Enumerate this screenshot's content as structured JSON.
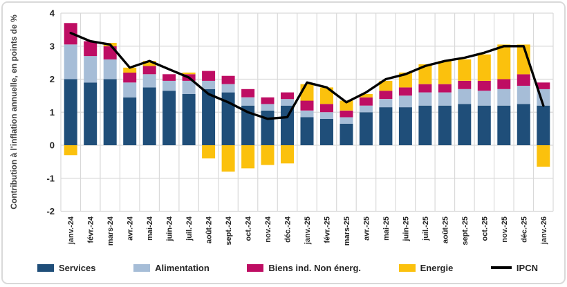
{
  "chart_data": {
    "type": "bar",
    "stacked": true,
    "title": "",
    "ylabel": "Contribution à l'inflation annuelle, en points de %",
    "xlabel": "",
    "ylim": [
      -2,
      4
    ],
    "yticks": [
      4,
      3,
      2,
      1,
      0,
      -1,
      -2
    ],
    "grid": true,
    "legend_position": "bottom",
    "categories": [
      "janv.-24",
      "févr.-24",
      "mars-24",
      "avr.-24",
      "mai-24",
      "juin-24",
      "juil.-24",
      "août-24",
      "sept.-24",
      "oct.-24",
      "nov.-24",
      "déc.-24",
      "janv.-25",
      "févr.-25",
      "mars-25",
      "avr.-25",
      "mai-25",
      "juin-25",
      "juil.-25",
      "août-25",
      "sept.-25",
      "oct.-25",
      "nov.-25",
      "déc.-25",
      "janv.-26"
    ],
    "series": [
      {
        "name": "Services",
        "color": "#1F4E79",
        "values": [
          2.0,
          1.9,
          2.0,
          1.45,
          1.75,
          1.65,
          1.55,
          1.7,
          1.6,
          1.2,
          1.05,
          1.2,
          0.85,
          0.8,
          0.65,
          1.0,
          1.15,
          1.15,
          1.2,
          1.2,
          1.25,
          1.2,
          1.2,
          1.25,
          1.2
        ]
      },
      {
        "name": "Alimentation",
        "color": "#A6BDD7",
        "values": [
          1.05,
          0.8,
          0.6,
          0.45,
          0.4,
          0.3,
          0.4,
          0.25,
          0.25,
          0.25,
          0.2,
          0.2,
          0.2,
          0.2,
          0.2,
          0.2,
          0.25,
          0.35,
          0.4,
          0.4,
          0.45,
          0.45,
          0.5,
          0.55,
          0.5
        ]
      },
      {
        "name": "Biens ind. Non énerg.",
        "color": "#BE0D63",
        "values": [
          0.65,
          0.45,
          0.4,
          0.3,
          0.25,
          0.2,
          0.2,
          0.3,
          0.25,
          0.25,
          0.2,
          0.2,
          0.3,
          0.25,
          0.2,
          0.25,
          0.25,
          0.25,
          0.25,
          0.25,
          0.25,
          0.3,
          0.3,
          0.35,
          0.2
        ]
      },
      {
        "name": "Energie",
        "color": "#FBC10D",
        "values": [
          -0.3,
          0.0,
          0.1,
          0.15,
          0.15,
          0.0,
          0.05,
          -0.4,
          -0.8,
          -0.7,
          -0.6,
          -0.55,
          0.5,
          0.5,
          0.3,
          0.1,
          0.3,
          0.45,
          0.6,
          0.7,
          0.65,
          0.8,
          1.05,
          0.9,
          -0.65
        ]
      }
    ],
    "line_series": {
      "name": "IPCN",
      "color": "#000000",
      "values": [
        3.4,
        3.15,
        3.05,
        2.35,
        2.55,
        2.3,
        2.05,
        1.55,
        1.3,
        1.0,
        0.8,
        0.85,
        1.9,
        1.75,
        1.3,
        1.6,
        2.0,
        2.15,
        2.4,
        2.55,
        2.65,
        2.8,
        3.0,
        3.0,
        1.2
      ]
    }
  },
  "colors": {
    "gridline": "#D9D9D9",
    "axis_text": "#262626",
    "card_border": "#D9D9D9",
    "background": "#FFFFFF"
  }
}
